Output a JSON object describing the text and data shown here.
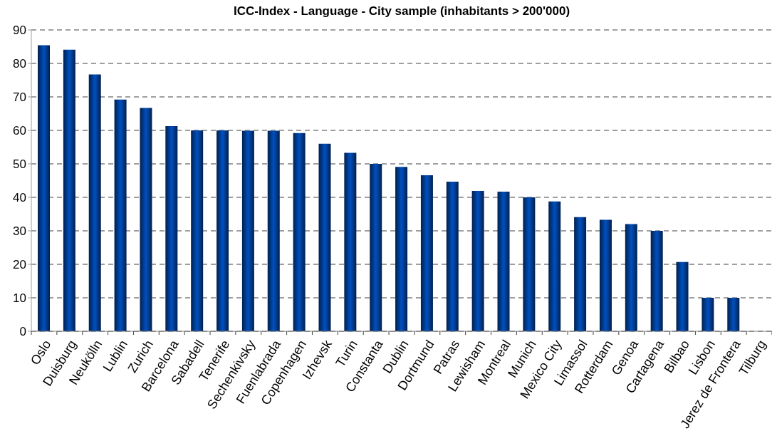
{
  "chart_data": {
    "type": "bar",
    "title": "ICC-Index - Language - City sample (inhabitants > 200'000)",
    "categories": [
      "Oslo",
      "Duisburg",
      "Neukölln",
      "Lublin",
      "Zurich",
      "Barcelona",
      "Sabadell",
      "Tenerife",
      "Sechenkivsky",
      "Fuenlabrada",
      "Copenhagen",
      "Izhevsk",
      "Turin",
      "Constanta",
      "Dublin",
      "Dortmund",
      "Patras",
      "Lewisham",
      "Montreal",
      "Munich",
      "Mexico City",
      "Limassol",
      "Rotterdam",
      "Genoa",
      "Cartagena",
      "Bilbao",
      "Lisbon",
      "Jerez de Frontera",
      "Tilburg"
    ],
    "values": [
      85.4,
      84.1,
      76.7,
      69.2,
      66.7,
      61.3,
      60.0,
      60.0,
      59.9,
      59.9,
      59.2,
      56.0,
      53.3,
      50.0,
      49.1,
      46.6,
      44.7,
      41.9,
      41.7,
      40.0,
      38.8,
      34.1,
      33.3,
      32.0,
      30.0,
      20.7,
      10.0,
      10.0,
      null
    ],
    "color": "#0050c0",
    "ylim": [
      0,
      90
    ],
    "yticks": [
      0,
      10,
      20,
      30,
      40,
      50,
      60,
      70,
      80,
      90
    ],
    "grid": "y"
  }
}
